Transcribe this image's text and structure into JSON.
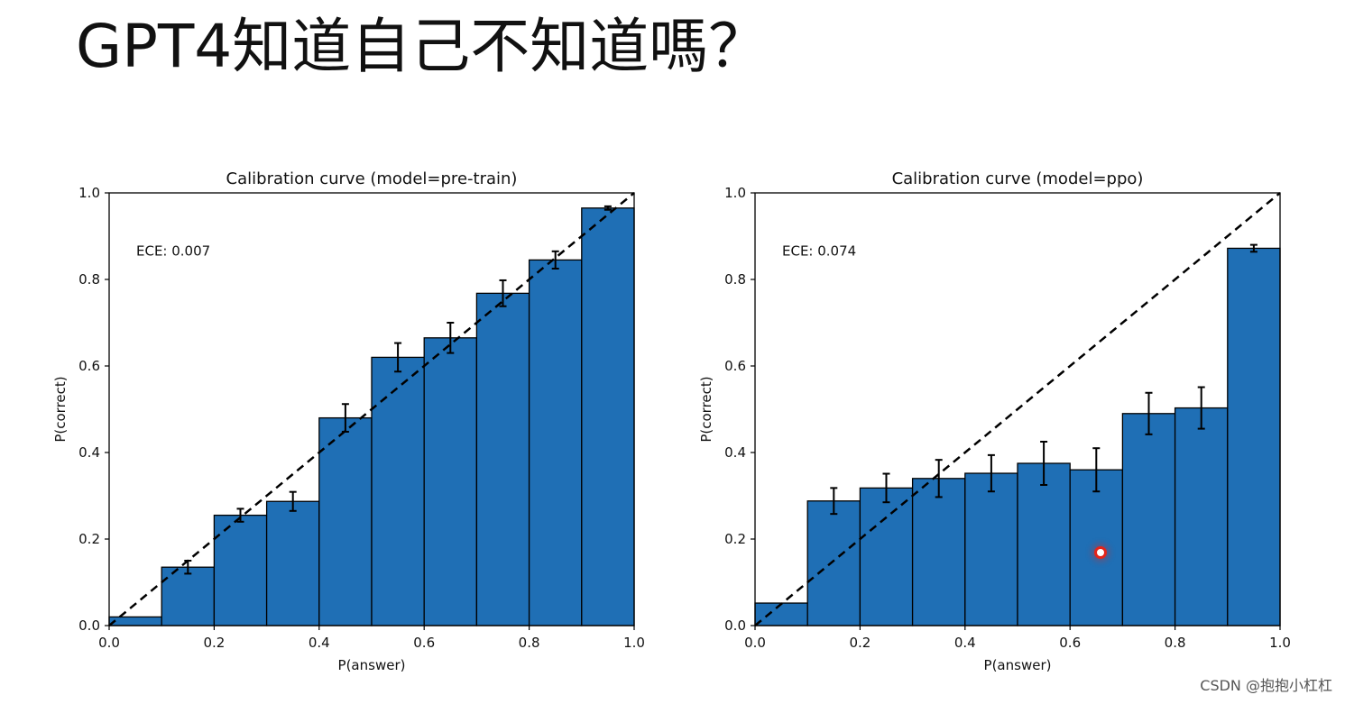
{
  "slide": {
    "title": "GPT4知道自己不知道嗎？"
  },
  "watermark": "CSDN @抱抱小杠杠",
  "chart_data": [
    {
      "type": "bar",
      "title": "Calibration curve (model=pre-train)",
      "xlabel": "P(answer)",
      "ylabel": "P(correct)",
      "xlim": [
        0,
        1
      ],
      "ylim": [
        0,
        1
      ],
      "xticks": [
        "0.0",
        "0.2",
        "0.4",
        "0.6",
        "0.8",
        "1.0"
      ],
      "yticks": [
        "0.0",
        "0.2",
        "0.4",
        "0.6",
        "0.8",
        "1.0"
      ],
      "bin_edges": [
        0,
        0.1,
        0.2,
        0.3,
        0.4,
        0.5,
        0.6,
        0.7,
        0.8,
        0.9,
        1.0
      ],
      "values": [
        0.02,
        0.135,
        0.255,
        0.287,
        0.48,
        0.62,
        0.665,
        0.768,
        0.845,
        0.965
      ],
      "errors": [
        0.0,
        0.015,
        0.015,
        0.022,
        0.032,
        0.033,
        0.035,
        0.03,
        0.02,
        0.004
      ],
      "annotation": "ECE: 0.007",
      "reference_line": "y = x (dashed)",
      "bar_color": "#1f6fb5",
      "grid": false
    },
    {
      "type": "bar",
      "title": "Calibration curve (model=ppo)",
      "xlabel": "P(answer)",
      "ylabel": "P(correct)",
      "xlim": [
        0,
        1
      ],
      "ylim": [
        0,
        1
      ],
      "xticks": [
        "0.0",
        "0.2",
        "0.4",
        "0.6",
        "0.8",
        "1.0"
      ],
      "yticks": [
        "0.0",
        "0.2",
        "0.4",
        "0.6",
        "0.8",
        "1.0"
      ],
      "bin_edges": [
        0,
        0.1,
        0.2,
        0.3,
        0.4,
        0.5,
        0.6,
        0.7,
        0.8,
        0.9,
        1.0
      ],
      "values": [
        0.052,
        0.288,
        0.318,
        0.34,
        0.352,
        0.375,
        0.36,
        0.49,
        0.503,
        0.872
      ],
      "errors": [
        0.0,
        0.03,
        0.033,
        0.043,
        0.042,
        0.05,
        0.05,
        0.048,
        0.048,
        0.008
      ],
      "annotation": "ECE: 0.074",
      "reference_line": "y = x (dashed)",
      "bar_color": "#1f6fb5",
      "grid": false
    }
  ]
}
